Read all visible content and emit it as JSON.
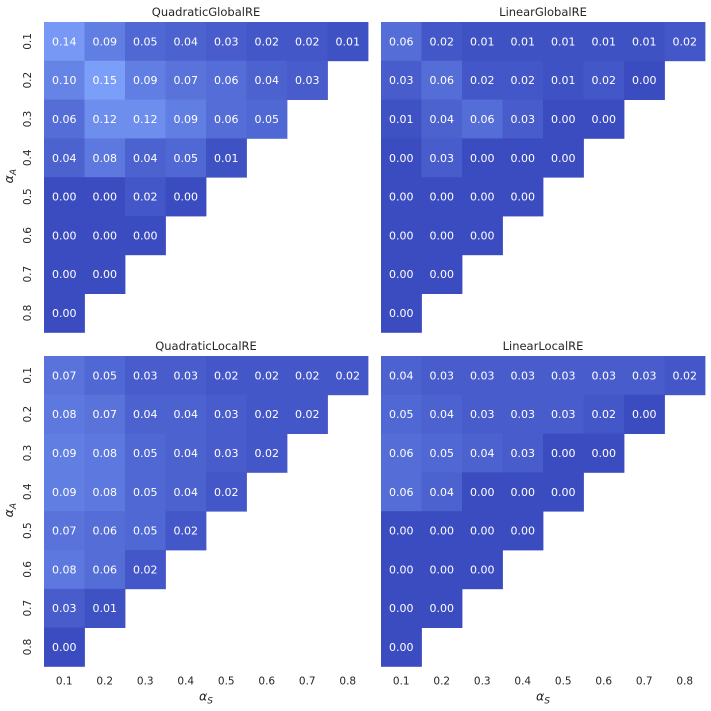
{
  "chart_data": [
    {
      "type": "heatmap",
      "title": "QuadraticGlobalRE",
      "xlabel": "",
      "ylabel": "α_A",
      "x_ticks": [
        "0.1",
        "0.2",
        "0.3",
        "0.4",
        "0.5",
        "0.6",
        "0.7",
        "0.8"
      ],
      "y_ticks": [
        "0.1",
        "0.2",
        "0.3",
        "0.4",
        "0.5",
        "0.6",
        "0.7",
        "0.8"
      ],
      "show_x_ticks": false,
      "show_y_ticks": true,
      "values": [
        [
          0.14,
          0.09,
          0.05,
          0.04,
          0.03,
          0.02,
          0.02,
          0.01
        ],
        [
          0.1,
          0.15,
          0.09,
          0.07,
          0.06,
          0.04,
          0.03
        ],
        [
          0.06,
          0.12,
          0.12,
          0.09,
          0.06,
          0.05
        ],
        [
          0.04,
          0.08,
          0.04,
          0.05,
          0.01
        ],
        [
          0.0,
          0.0,
          0.02,
          0.0
        ],
        [
          0.0,
          0.0,
          0.0
        ],
        [
          0.0,
          0.0
        ],
        [
          0.0
        ]
      ]
    },
    {
      "type": "heatmap",
      "title": "LinearGlobalRE",
      "xlabel": "",
      "ylabel": "",
      "x_ticks": [
        "0.1",
        "0.2",
        "0.3",
        "0.4",
        "0.5",
        "0.6",
        "0.7",
        "0.8"
      ],
      "y_ticks": [
        "0.1",
        "0.2",
        "0.3",
        "0.4",
        "0.5",
        "0.6",
        "0.7",
        "0.8"
      ],
      "show_x_ticks": false,
      "show_y_ticks": false,
      "values": [
        [
          0.06,
          0.02,
          0.01,
          0.01,
          0.01,
          0.01,
          0.01,
          0.02
        ],
        [
          0.03,
          0.06,
          0.02,
          0.02,
          0.01,
          0.02,
          0.0
        ],
        [
          0.01,
          0.04,
          0.06,
          0.03,
          0.0,
          0.0
        ],
        [
          0.0,
          0.03,
          0.0,
          0.0,
          0.0
        ],
        [
          0.0,
          0.0,
          0.0,
          0.0
        ],
        [
          0.0,
          0.0,
          0.0
        ],
        [
          0.0,
          0.0
        ],
        [
          0.0
        ]
      ]
    },
    {
      "type": "heatmap",
      "title": "QuadraticLocalRE",
      "xlabel": "α_S",
      "ylabel": "α_A",
      "x_ticks": [
        "0.1",
        "0.2",
        "0.3",
        "0.4",
        "0.5",
        "0.6",
        "0.7",
        "0.8"
      ],
      "y_ticks": [
        "0.1",
        "0.2",
        "0.3",
        "0.4",
        "0.5",
        "0.6",
        "0.7",
        "0.8"
      ],
      "show_x_ticks": true,
      "show_y_ticks": true,
      "values": [
        [
          0.07,
          0.05,
          0.03,
          0.03,
          0.02,
          0.02,
          0.02,
          0.02
        ],
        [
          0.08,
          0.07,
          0.04,
          0.04,
          0.03,
          0.02,
          0.02
        ],
        [
          0.09,
          0.08,
          0.05,
          0.04,
          0.03,
          0.02
        ],
        [
          0.09,
          0.08,
          0.05,
          0.04,
          0.02
        ],
        [
          0.07,
          0.06,
          0.05,
          0.02
        ],
        [
          0.08,
          0.06,
          0.02
        ],
        [
          0.03,
          0.01
        ],
        [
          0.0
        ]
      ]
    },
    {
      "type": "heatmap",
      "title": "LinearLocalRE",
      "xlabel": "α_S",
      "ylabel": "",
      "x_ticks": [
        "0.1",
        "0.2",
        "0.3",
        "0.4",
        "0.5",
        "0.6",
        "0.7",
        "0.8"
      ],
      "y_ticks": [
        "0.1",
        "0.2",
        "0.3",
        "0.4",
        "0.5",
        "0.6",
        "0.7",
        "0.8"
      ],
      "show_x_ticks": true,
      "show_y_ticks": false,
      "values": [
        [
          0.04,
          0.03,
          0.03,
          0.03,
          0.03,
          0.03,
          0.03,
          0.02
        ],
        [
          0.05,
          0.04,
          0.03,
          0.03,
          0.03,
          0.02,
          0.0
        ],
        [
          0.06,
          0.05,
          0.04,
          0.03,
          0.0,
          0.0
        ],
        [
          0.06,
          0.04,
          0.0,
          0.0,
          0.0
        ],
        [
          0.0,
          0.0,
          0.0,
          0.0
        ],
        [
          0.0,
          0.0,
          0.0
        ],
        [
          0.0,
          0.0
        ],
        [
          0.0
        ]
      ]
    }
  ],
  "colors": {
    "low": "#3b4cc0",
    "high": "#7b9ff9",
    "text": "#ffffff",
    "label": "#262626"
  },
  "color_range": [
    0.0,
    0.15
  ]
}
